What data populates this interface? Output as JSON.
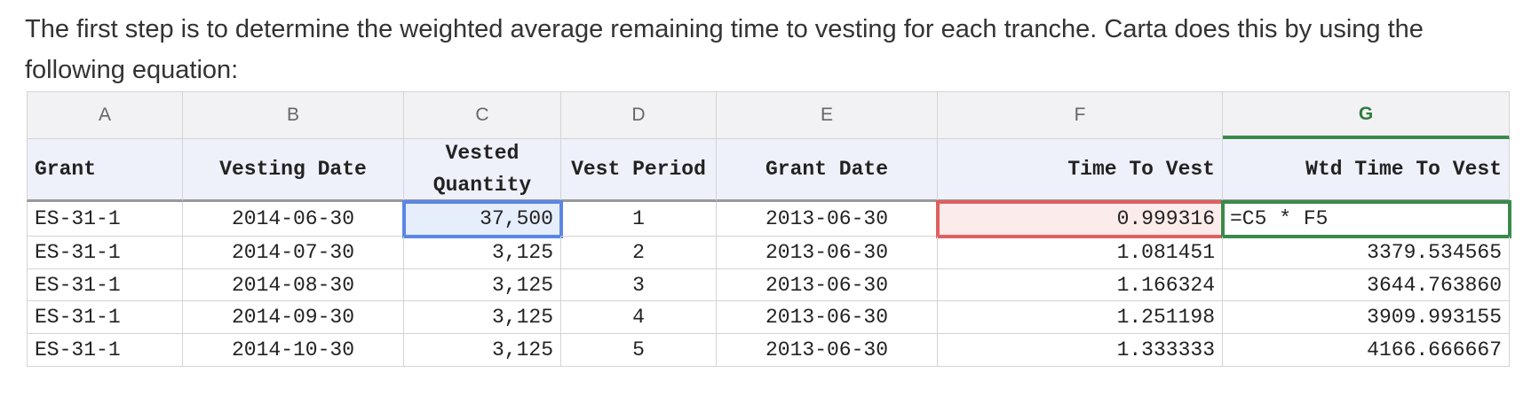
{
  "paragraph": "The first step is to determine the weighted average remaining time to vesting for each tranche. Carta does this by using the following equation:",
  "table": {
    "columns": [
      "A",
      "B",
      "C",
      "D",
      "E",
      "F",
      "G"
    ],
    "header": [
      "Grant",
      "Vesting Date",
      "Vested Quantity",
      "Vest Period",
      "Grant Date",
      "Time To Vest",
      "Wtd Time To Vest"
    ],
    "rows": [
      [
        "ES-31-1",
        "2014-06-30",
        "37,500",
        "1",
        "2013-06-30",
        "0.999316",
        "=C5 * F5"
      ],
      [
        "ES-31-1",
        "2014-07-30",
        "3,125",
        "2",
        "2013-06-30",
        "1.081451",
        "3379.534565"
      ],
      [
        "ES-31-1",
        "2014-08-30",
        "3,125",
        "3",
        "2013-06-30",
        "1.166324",
        "3644.763860"
      ],
      [
        "ES-31-1",
        "2014-09-30",
        "3,125",
        "4",
        "2013-06-30",
        "1.251198",
        "3909.993155"
      ],
      [
        "ES-31-1",
        "2014-10-30",
        "3,125",
        "5",
        "2013-06-30",
        "1.333333",
        "4166.666667"
      ]
    ]
  }
}
